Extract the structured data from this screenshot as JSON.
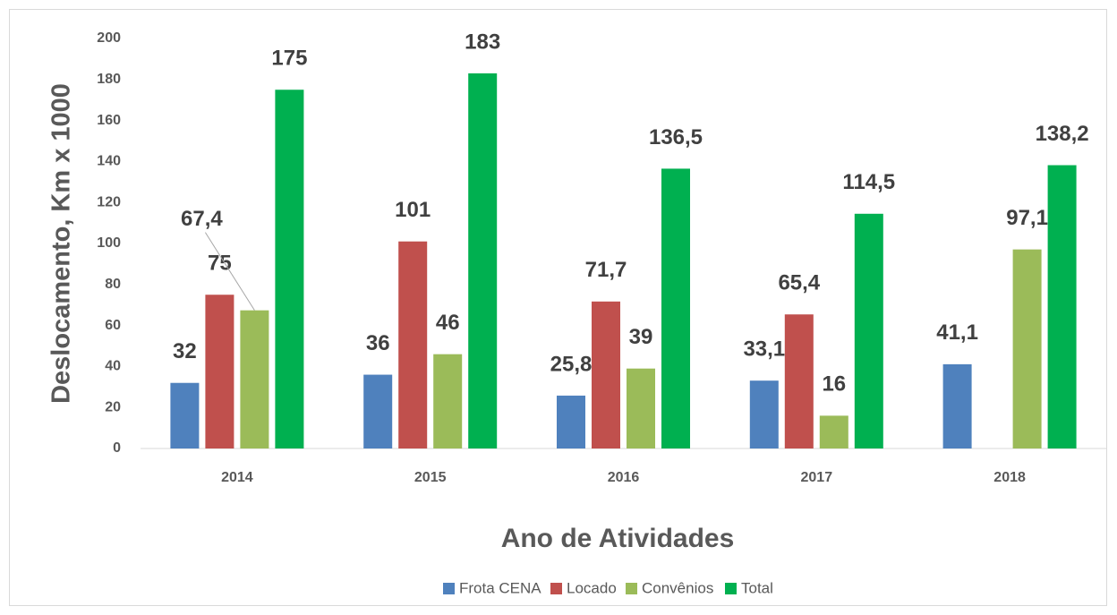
{
  "chart_data": {
    "type": "bar",
    "xlabel": "Ano de Atividades",
    "ylabel": "Deslocamento, Km x 1000",
    "categories": [
      "2014",
      "2015",
      "2016",
      "2017",
      "2018"
    ],
    "series": [
      {
        "name": "Frota CENA",
        "color": "#4f81bd",
        "values": [
          32,
          36,
          25.8,
          33.1,
          41.1
        ],
        "value_labels": [
          "32",
          "36",
          "25,8",
          "33,1",
          "41,1"
        ]
      },
      {
        "name": "Locado",
        "color": "#c0504d",
        "values": [
          75,
          101,
          71.7,
          65.4,
          null
        ],
        "value_labels": [
          "75",
          "101",
          "71,7",
          "65,4",
          null
        ]
      },
      {
        "name": "Convênios",
        "color": "#9bbb59",
        "values": [
          67.4,
          46,
          39,
          16,
          97.1
        ],
        "value_labels": [
          "67,4",
          "46",
          "39",
          "16",
          "97,1"
        ]
      },
      {
        "name": "Total",
        "color": "#00b050",
        "values": [
          175,
          183,
          136.5,
          114.5,
          138.2
        ],
        "value_labels": [
          "175",
          "183",
          "136,5",
          "114,5",
          "138,2"
        ]
      }
    ],
    "ylim": [
      0,
      200
    ],
    "yticks": [
      0,
      20,
      40,
      60,
      80,
      100,
      120,
      140,
      160,
      180,
      200
    ],
    "grid": false,
    "legend": "bottom"
  }
}
